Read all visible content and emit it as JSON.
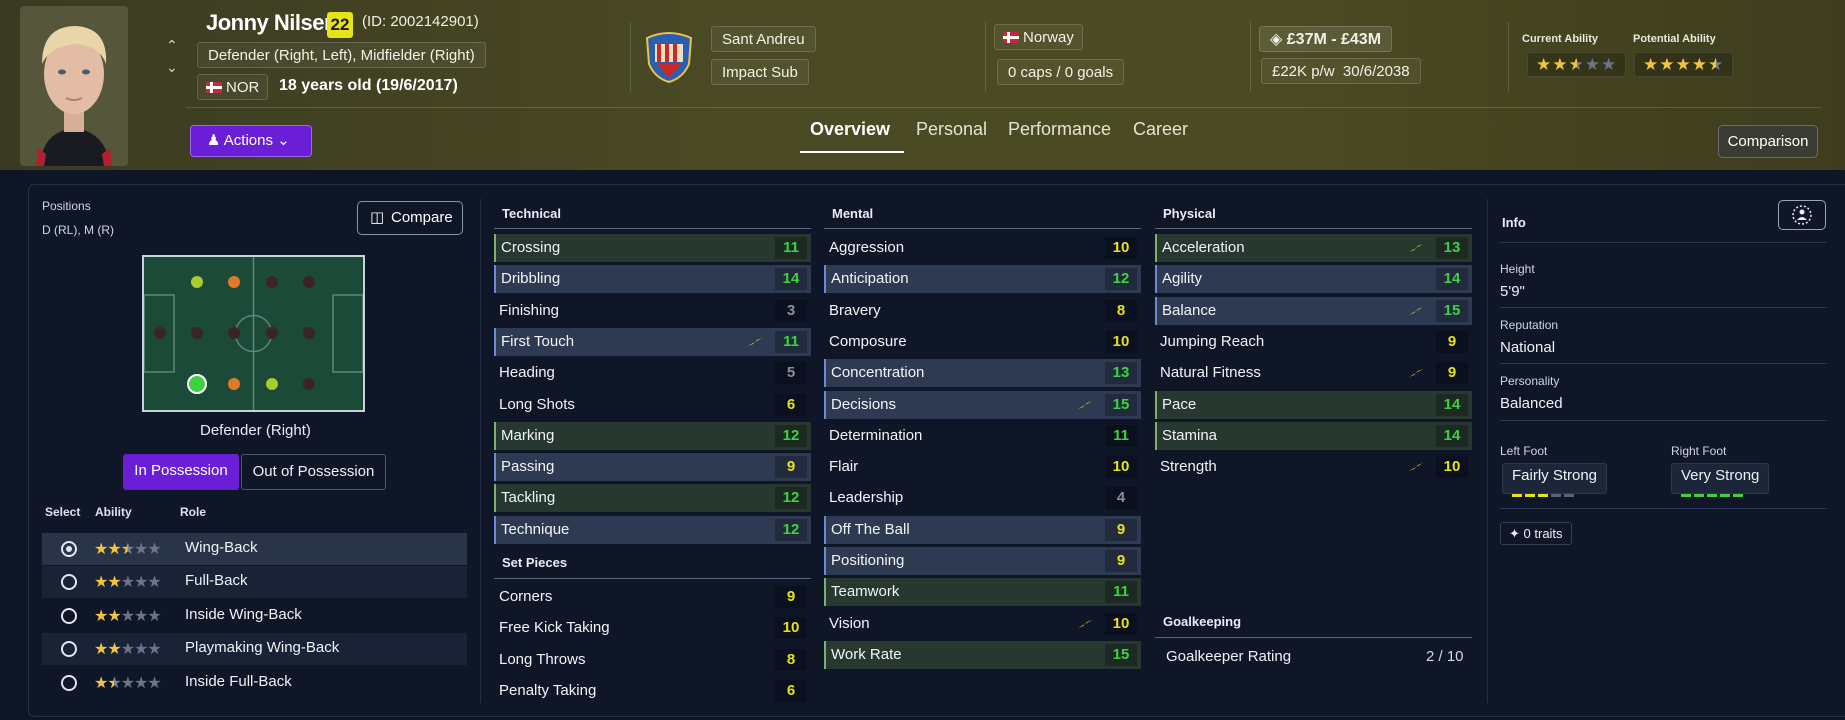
{
  "player": {
    "name": "Jonny Nilsen",
    "age_badge": "22",
    "id_text": "(ID: 2002142901)",
    "positions_long": "Defender (Right, Left), Midfielder (Right)",
    "nationality_code": "NOR",
    "age_text": "18 years old (19/6/2017)",
    "club": "Sant Andreu",
    "squad_status": "Impact Sub",
    "country": "Norway",
    "caps": "0 caps / 0 goals",
    "value": "£37M - £43M",
    "wage": "£22K p/w",
    "contract_end": "30/6/2038",
    "current_ability_label": "Current Ability",
    "potential_ability_label": "Potential Ability",
    "current_ability_stars": 2.5,
    "potential_ability_stars": 4.5
  },
  "header": {
    "actions_label": "Actions",
    "tabs": [
      {
        "label": "Overview",
        "active": true
      },
      {
        "label": "Personal",
        "active": false
      },
      {
        "label": "Performance",
        "active": false
      },
      {
        "label": "Career",
        "active": false
      }
    ],
    "comparison_label": "Comparison"
  },
  "left_panel": {
    "positions_label": "Positions",
    "positions_short": "D (RL), M (R)",
    "compare_label": "Compare",
    "selected_position": "Defender (Right)",
    "in_possession_label": "In Possession",
    "out_of_possession_label": "Out of Possession",
    "role_headers": {
      "select": "Select",
      "ability": "Ability",
      "role": "Role"
    },
    "roles": [
      {
        "name": "Wing-Back",
        "stars": 2.5,
        "selected": true
      },
      {
        "name": "Full-Back",
        "stars": 2,
        "selected": false
      },
      {
        "name": "Inside Wing-Back",
        "stars": 2,
        "selected": false
      },
      {
        "name": "Playmaking Wing-Back",
        "stars": 2,
        "selected": false
      },
      {
        "name": "Inside Full-Back",
        "stars": 1.5,
        "selected": false
      }
    ]
  },
  "attributes": {
    "technical_label": "Technical",
    "technical": [
      {
        "name": "Crossing",
        "value": "11",
        "hl": "green",
        "trend": false
      },
      {
        "name": "Dribbling",
        "value": "14",
        "hl": "blue",
        "trend": false
      },
      {
        "name": "Finishing",
        "value": "3",
        "hl": "",
        "trend": false
      },
      {
        "name": "First Touch",
        "value": "11",
        "hl": "blue",
        "trend": true
      },
      {
        "name": "Heading",
        "value": "5",
        "hl": "",
        "trend": false
      },
      {
        "name": "Long Shots",
        "value": "6",
        "hl": "",
        "trend": false
      },
      {
        "name": "Marking",
        "value": "12",
        "hl": "green",
        "trend": false
      },
      {
        "name": "Passing",
        "value": "9",
        "hl": "blue",
        "trend": false
      },
      {
        "name": "Tackling",
        "value": "12",
        "hl": "green",
        "trend": false
      },
      {
        "name": "Technique",
        "value": "12",
        "hl": "blue",
        "trend": false
      }
    ],
    "set_pieces_label": "Set Pieces",
    "set_pieces": [
      {
        "name": "Corners",
        "value": "9",
        "hl": "",
        "trend": false
      },
      {
        "name": "Free Kick Taking",
        "value": "10",
        "hl": "",
        "trend": false
      },
      {
        "name": "Long Throws",
        "value": "8",
        "hl": "",
        "trend": false
      },
      {
        "name": "Penalty Taking",
        "value": "6",
        "hl": "",
        "trend": false
      }
    ],
    "mental_label": "Mental",
    "mental": [
      {
        "name": "Aggression",
        "value": "10",
        "hl": "",
        "trend": false
      },
      {
        "name": "Anticipation",
        "value": "12",
        "hl": "blue",
        "trend": false
      },
      {
        "name": "Bravery",
        "value": "8",
        "hl": "",
        "trend": false
      },
      {
        "name": "Composure",
        "value": "10",
        "hl": "",
        "trend": false
      },
      {
        "name": "Concentration",
        "value": "13",
        "hl": "blue",
        "trend": false
      },
      {
        "name": "Decisions",
        "value": "15",
        "hl": "blue",
        "trend": true
      },
      {
        "name": "Determination",
        "value": "11",
        "hl": "",
        "trend": false
      },
      {
        "name": "Flair",
        "value": "10",
        "hl": "",
        "trend": false
      },
      {
        "name": "Leadership",
        "value": "4",
        "hl": "",
        "trend": false
      },
      {
        "name": "Off The Ball",
        "value": "9",
        "hl": "blue",
        "trend": false
      },
      {
        "name": "Positioning",
        "value": "9",
        "hl": "blue",
        "trend": false
      },
      {
        "name": "Teamwork",
        "value": "11",
        "hl": "green",
        "trend": false
      },
      {
        "name": "Vision",
        "value": "10",
        "hl": "",
        "trend": true
      },
      {
        "name": "Work Rate",
        "value": "15",
        "hl": "green",
        "trend": false
      }
    ],
    "physical_label": "Physical",
    "physical": [
      {
        "name": "Acceleration",
        "value": "13",
        "hl": "green",
        "trend": true
      },
      {
        "name": "Agility",
        "value": "14",
        "hl": "blue",
        "trend": false
      },
      {
        "name": "Balance",
        "value": "15",
        "hl": "blue",
        "trend": true
      },
      {
        "name": "Jumping Reach",
        "value": "9",
        "hl": "",
        "trend": false
      },
      {
        "name": "Natural Fitness",
        "value": "9",
        "hl": "",
        "trend": true
      },
      {
        "name": "Pace",
        "value": "14",
        "hl": "green",
        "trend": false
      },
      {
        "name": "Stamina",
        "value": "14",
        "hl": "green",
        "trend": false
      },
      {
        "name": "Strength",
        "value": "10",
        "hl": "",
        "trend": true
      }
    ],
    "goalkeeping_label": "Goalkeeping",
    "gk_rating_label": "Goalkeeper Rating",
    "gk_rating_value": "2 / 10"
  },
  "info": {
    "title": "Info",
    "height_label": "Height",
    "height": "5'9\"",
    "reputation_label": "Reputation",
    "reputation": "National",
    "personality_label": "Personality",
    "personality": "Balanced",
    "left_foot_label": "Left Foot",
    "left_foot": "Fairly Strong",
    "left_foot_level": 3,
    "right_foot_label": "Right Foot",
    "right_foot": "Very Strong",
    "right_foot_level": 5,
    "traits": "0 traits"
  },
  "colors": {
    "accent_purple": "#6a1fd6",
    "value_green": "#3fd23f",
    "value_yellow": "#e8e21a",
    "star_gold": "#f0c442"
  }
}
